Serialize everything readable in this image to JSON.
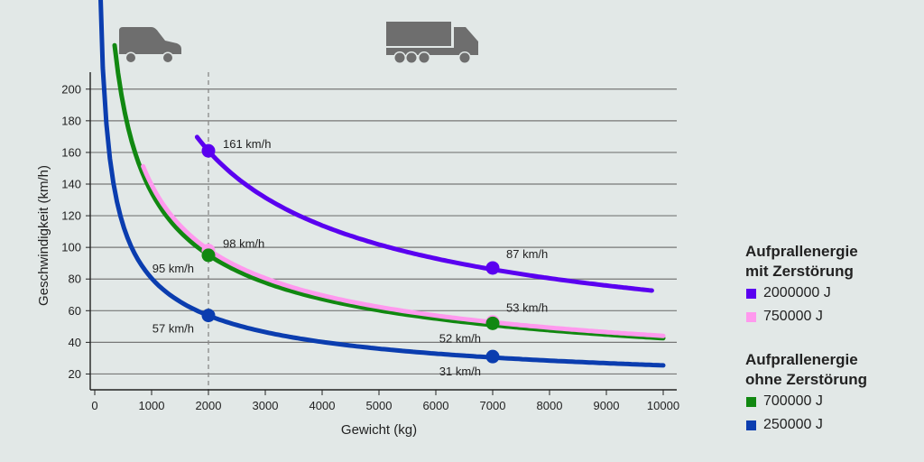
{
  "chart_data": {
    "type": "line",
    "xlabel": "Gewicht (kg)",
    "ylabel": "Geschwindigkeit (km/h)",
    "xlim": [
      0,
      10000
    ],
    "ylim": [
      10,
      205
    ],
    "xticks": [
      0,
      1000,
      2000,
      3000,
      4000,
      5000,
      6000,
      7000,
      8000,
      9000,
      10000
    ],
    "yticks": [
      20,
      40,
      60,
      80,
      100,
      120,
      140,
      160,
      180,
      200
    ],
    "grid": "horizontal",
    "reference_line_x": 2000,
    "legend_groups": [
      {
        "title_lines": [
          "Aufprallenergie",
          "mit Zerstörung"
        ],
        "entries": [
          "2000000 J",
          "750000 J"
        ]
      },
      {
        "title_lines": [
          "Aufprallenergie",
          "ohne Zerstörung"
        ],
        "entries": [
          "700000 J",
          "250000 J"
        ]
      }
    ],
    "series": [
      {
        "name": "2000000 J",
        "energy_j": 2000000,
        "color": "#5a00f0",
        "x_range": [
          1800,
          9800
        ]
      },
      {
        "name": "750000 J",
        "energy_j": 750000,
        "color": "#ff99ee",
        "x_range": [
          850,
          10000
        ]
      },
      {
        "name": "700000 J",
        "energy_j": 700000,
        "color": "#118811",
        "x_range": [
          350,
          10000
        ]
      },
      {
        "name": "250000 J",
        "energy_j": 250000,
        "color": "#0b3daf",
        "x_range": [
          80,
          10000
        ]
      }
    ],
    "points": [
      {
        "series": "2000000 J",
        "x": 2000,
        "y": 161,
        "label": "161 km/h",
        "label_pos": "right"
      },
      {
        "series": "2000000 J",
        "x": 7000,
        "y": 87,
        "label": "87 km/h",
        "label_pos": "above"
      },
      {
        "series": "750000 J",
        "x": 2000,
        "y": 98,
        "label": "98 km/h",
        "label_pos": "right"
      },
      {
        "series": "750000 J",
        "x": 7000,
        "y": 53,
        "label": "53 km/h",
        "label_pos": "above"
      },
      {
        "series": "700000 J",
        "x": 2000,
        "y": 95,
        "label": "95 km/h",
        "label_pos": "left"
      },
      {
        "series": "700000 J",
        "x": 7000,
        "y": 52,
        "label": "52 km/h",
        "label_pos": "below-left"
      },
      {
        "series": "250000 J",
        "x": 2000,
        "y": 57,
        "label": "57 km/h",
        "label_pos": "left"
      },
      {
        "series": "250000 J",
        "x": 7000,
        "y": 31,
        "label": "31 km/h",
        "label_pos": "below-left"
      }
    ]
  },
  "icons": {
    "car": "car-icon",
    "truck": "truck-icon"
  },
  "colors": {
    "background": "#e2e8e7",
    "grid": "#777777",
    "icon": "#6e6e6e"
  }
}
